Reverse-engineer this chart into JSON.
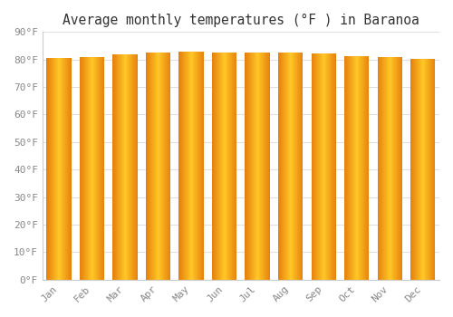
{
  "months": [
    "Jan",
    "Feb",
    "Mar",
    "Apr",
    "May",
    "Jun",
    "Jul",
    "Aug",
    "Sep",
    "Oct",
    "Nov",
    "Dec"
  ],
  "values": [
    80.5,
    80.8,
    81.8,
    82.6,
    83.0,
    82.5,
    82.5,
    82.5,
    82.1,
    81.3,
    80.8,
    80.4
  ],
  "title": "Average monthly temperatures (°F ) in Baranoa",
  "ylim": [
    0,
    90
  ],
  "ytick_step": 10,
  "bar_color_center": "#FFB300",
  "bar_color_edge_left": "#E07800",
  "bar_color_edge_right": "#CC6E00",
  "background_color": "#ffffff",
  "plot_bg_color": "#ffffff",
  "grid_color": "#e0e0e0",
  "tick_color": "#888888",
  "title_color": "#333333",
  "tick_label_color": "#666666",
  "title_fontsize": 10.5,
  "tick_fontsize": 8
}
